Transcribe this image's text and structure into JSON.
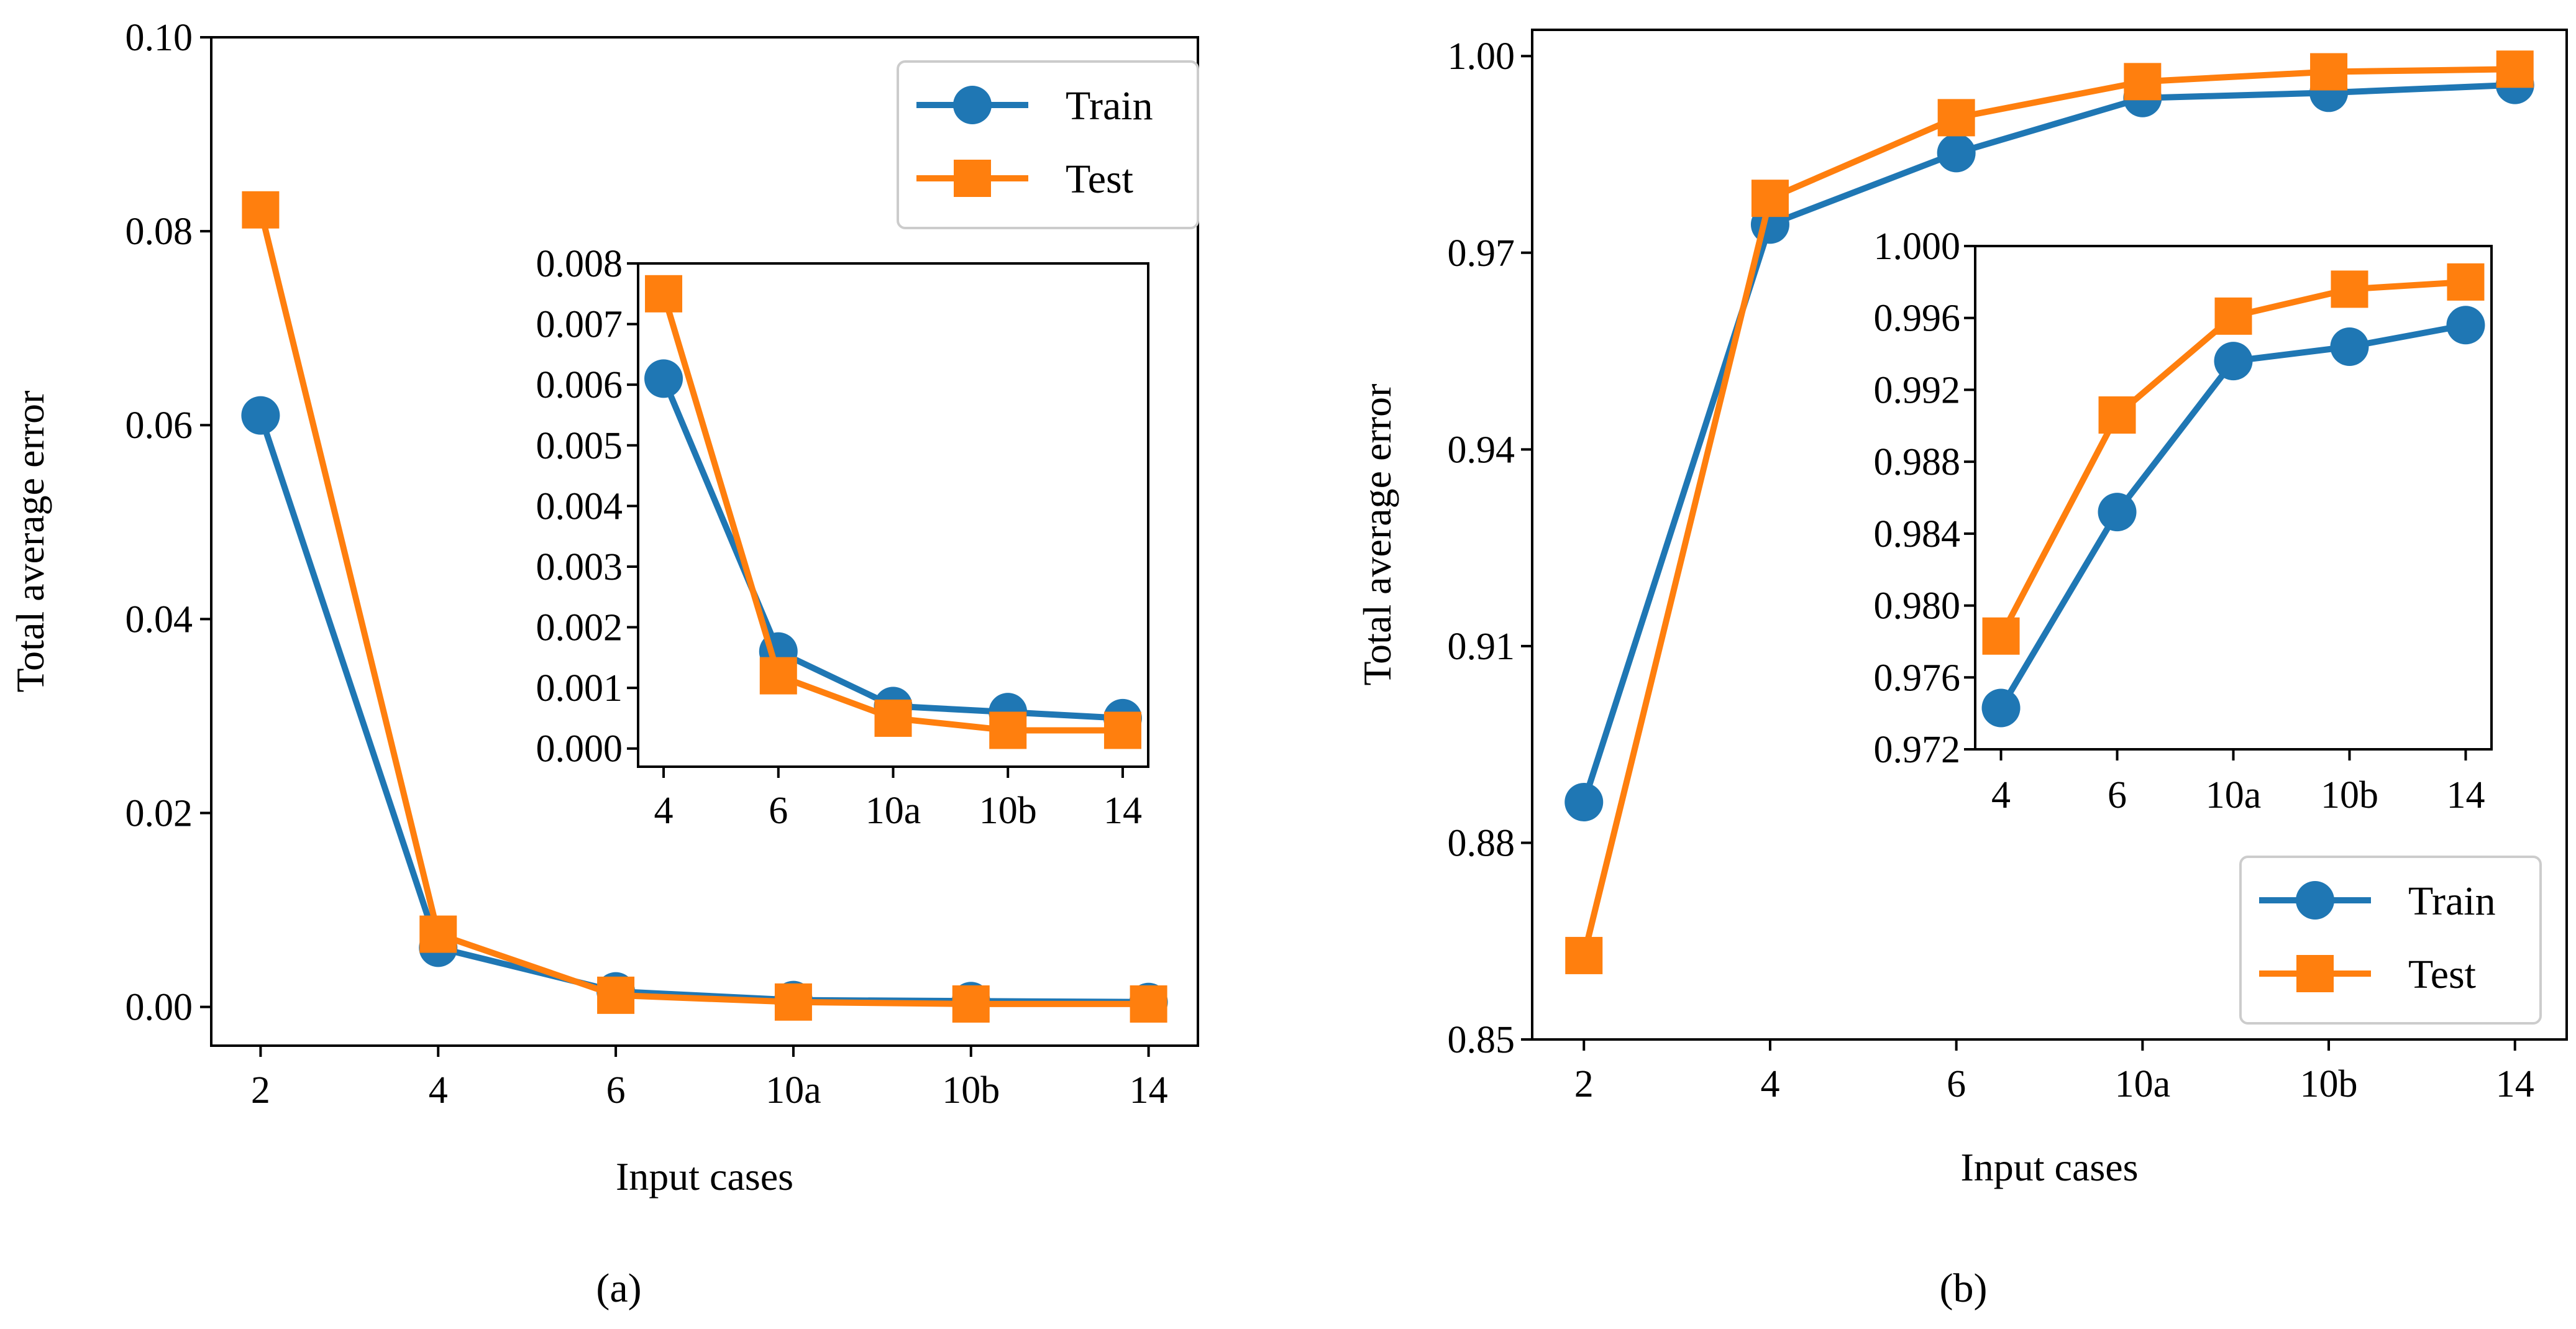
{
  "figure": {
    "colors": {
      "train": "#1f77b4",
      "test": "#ff7f0e",
      "axes": "#000000",
      "background": "#ffffff"
    }
  },
  "chart_data": [
    {
      "id": "a",
      "type": "line",
      "caption": "(a)",
      "xlabel": "Input cases",
      "ylabel": "Total average error",
      "categories": [
        "2",
        "4",
        "6",
        "10a",
        "10b",
        "14"
      ],
      "ylim": [
        -0.004,
        0.1
      ],
      "yticks": [
        0.0,
        0.02,
        0.04,
        0.06,
        0.08,
        0.1
      ],
      "ytick_labels": [
        "0.00",
        "0.02",
        "0.04",
        "0.06",
        "0.08",
        "0.10"
      ],
      "legend": {
        "position": "top-right",
        "entries": [
          "Train",
          "Test"
        ]
      },
      "series": [
        {
          "name": "Train",
          "marker": "circle",
          "values": [
            0.061,
            0.0061,
            0.0016,
            0.0007,
            0.0006,
            0.0005
          ]
        },
        {
          "name": "Test",
          "marker": "square",
          "values": [
            0.0822,
            0.0075,
            0.0012,
            0.0005,
            0.0003,
            0.0003
          ]
        }
      ],
      "inset": {
        "categories": [
          "4",
          "6",
          "10a",
          "10b",
          "14"
        ],
        "ylim": [
          -0.0003,
          0.008
        ],
        "yticks": [
          0.0,
          0.001,
          0.002,
          0.003,
          0.004,
          0.005,
          0.006,
          0.007,
          0.008
        ],
        "ytick_labels": [
          "0.000",
          "0.001",
          "0.002",
          "0.003",
          "0.004",
          "0.005",
          "0.006",
          "0.007",
          "0.008"
        ],
        "series": [
          {
            "name": "Train",
            "marker": "circle",
            "values": [
              0.0061,
              0.0016,
              0.0007,
              0.0006,
              0.0005
            ]
          },
          {
            "name": "Test",
            "marker": "square",
            "values": [
              0.0075,
              0.0012,
              0.0005,
              0.0003,
              0.0003
            ]
          }
        ]
      }
    },
    {
      "id": "b",
      "type": "line",
      "caption": "(b)",
      "xlabel": "Input cases",
      "ylabel": "Total average error",
      "categories": [
        "2",
        "4",
        "6",
        "10a",
        "10b",
        "14"
      ],
      "ylim": [
        0.85,
        1.004
      ],
      "yticks": [
        0.85,
        0.88,
        0.91,
        0.94,
        0.97,
        1.0
      ],
      "ytick_labels": [
        "0.85",
        "0.88",
        "0.91",
        "0.94",
        "0.97",
        "1.00"
      ],
      "legend": {
        "position": "bottom-right",
        "entries": [
          "Train",
          "Test"
        ]
      },
      "series": [
        {
          "name": "Train",
          "marker": "circle",
          "values": [
            0.8862,
            0.9743,
            0.9852,
            0.9936,
            0.9944,
            0.9956
          ]
        },
        {
          "name": "Test",
          "marker": "square",
          "values": [
            0.8628,
            0.9783,
            0.9906,
            0.9961,
            0.9976,
            0.998
          ]
        }
      ],
      "inset": {
        "categories": [
          "4",
          "6",
          "10a",
          "10b",
          "14"
        ],
        "ylim": [
          0.972,
          1.0
        ],
        "yticks": [
          0.972,
          0.976,
          0.98,
          0.984,
          0.988,
          0.992,
          0.996,
          1.0
        ],
        "ytick_labels": [
          "0.972",
          "0.976",
          "0.980",
          "0.984",
          "0.988",
          "0.992",
          "0.996",
          "1.000"
        ],
        "series": [
          {
            "name": "Train",
            "marker": "circle",
            "values": [
              0.9743,
              0.9852,
              0.9936,
              0.9944,
              0.9956
            ]
          },
          {
            "name": "Test",
            "marker": "square",
            "values": [
              0.9783,
              0.9906,
              0.9961,
              0.9976,
              0.998
            ]
          }
        ]
      }
    }
  ]
}
